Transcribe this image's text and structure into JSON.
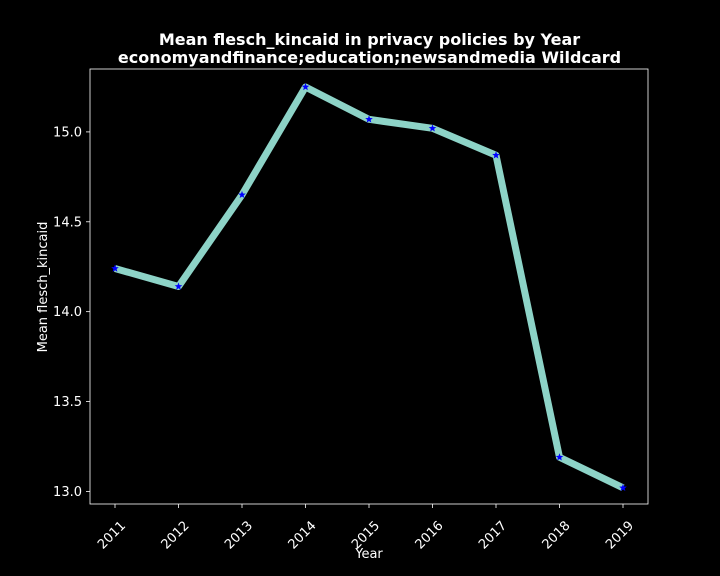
{
  "chart_data": {
    "type": "line",
    "title": "Mean flesch_kincaid in privacy policies by Year",
    "subtitle": "economyandfinance;education;newsandmedia Wildcard",
    "xlabel": "Year",
    "ylabel": "Mean flesch_kincaid",
    "x": [
      "2011",
      "2012",
      "2013",
      "2014",
      "2015",
      "2016",
      "2017",
      "2018",
      "2019"
    ],
    "values": [
      14.24,
      14.14,
      14.65,
      15.25,
      15.07,
      15.02,
      14.87,
      13.19,
      13.02
    ],
    "y_ticks": [
      "13.0",
      "13.5",
      "14.0",
      "14.5",
      "15.0"
    ],
    "ylim": [
      12.93,
      15.35
    ],
    "grid": false,
    "colors": {
      "background": "#000000",
      "line": "#8dd3c7",
      "marker": "#0000ff",
      "axes": "#ffffff",
      "text": "#ffffff"
    },
    "marker": "star"
  }
}
